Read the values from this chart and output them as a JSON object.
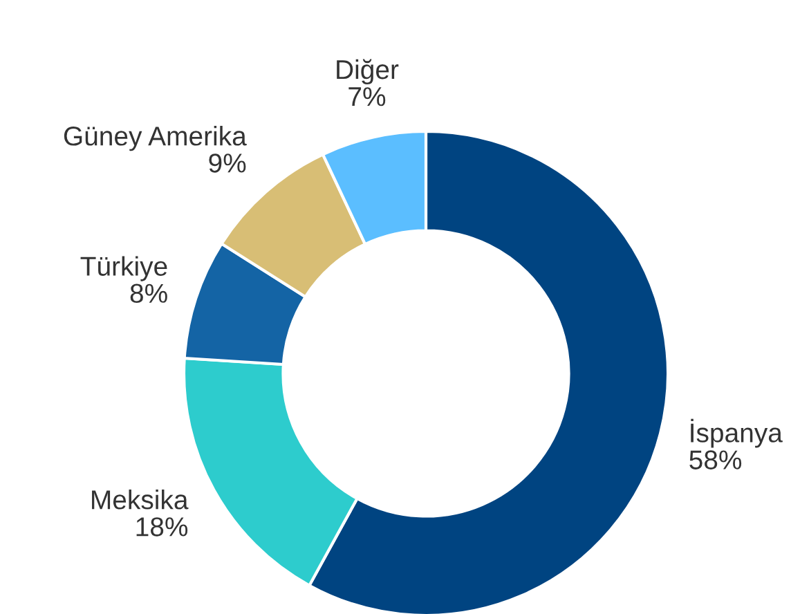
{
  "chart_data": {
    "type": "donut",
    "categories": [
      "İspanya",
      "Meksika",
      "Türkiye",
      "Güney Amerika",
      "Diğer"
    ],
    "values": [
      58,
      18,
      8,
      9,
      7
    ],
    "value_labels": [
      "58%",
      "18%",
      "8%",
      "9%",
      "7%"
    ],
    "colors": [
      "#004481",
      "#2dcccd",
      "#1464a5",
      "#d8be75",
      "#5bbeff"
    ]
  }
}
